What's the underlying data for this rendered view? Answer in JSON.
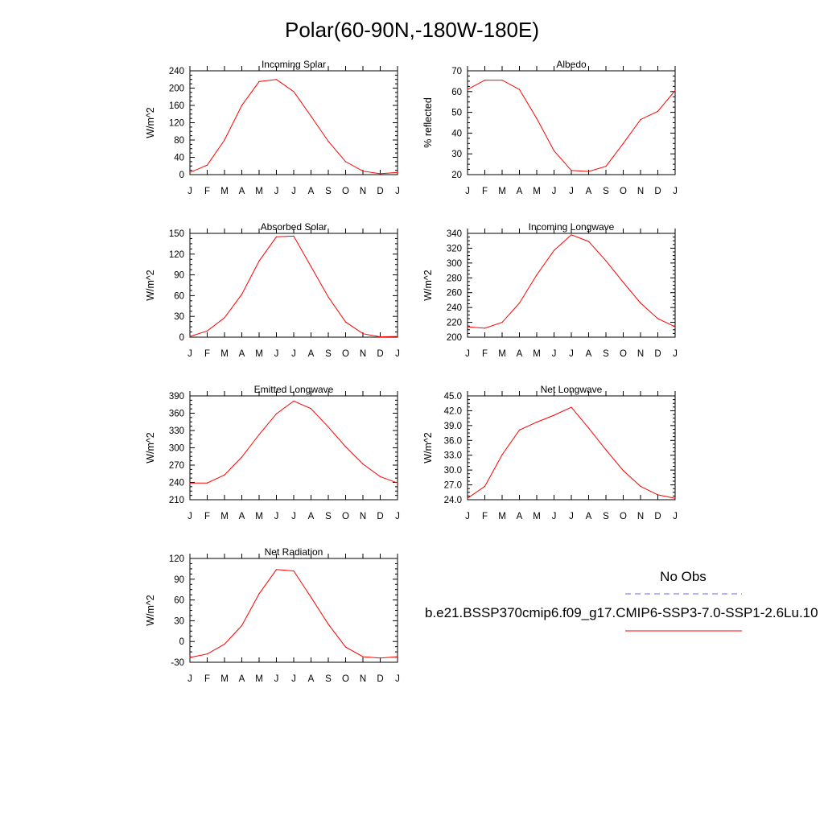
{
  "figure_title": "Polar(60-90N,-180W-180E)",
  "colors": {
    "model": "#ff0000",
    "obs": "#6666ff",
    "axis": "#000000"
  },
  "legend": {
    "obs_label": "No Obs",
    "model_label": "b.e21.BSSP370cmip6.f09_g17.CMIP6-SSP3-7.0-SSP1-2.6Lu.10"
  },
  "chart_data": [
    {
      "type": "line",
      "title": "Incoming Solar",
      "xlabel": "",
      "ylabel": "W/m^2",
      "x": [
        "J",
        "F",
        "M",
        "A",
        "M",
        "J",
        "J",
        "A",
        "S",
        "O",
        "N",
        "D",
        "J"
      ],
      "ylim": [
        0,
        240
      ],
      "yticks": [
        "0",
        "40",
        "80",
        "120",
        "160",
        "200",
        "240"
      ],
      "series": [
        {
          "values": [
            5,
            22,
            80,
            160,
            215,
            220,
            192,
            135,
            77,
            30,
            8,
            2,
            5
          ]
        }
      ]
    },
    {
      "type": "line",
      "title": "Albedo",
      "xlabel": "",
      "ylabel": "% reflected",
      "x": [
        "J",
        "F",
        "M",
        "A",
        "M",
        "J",
        "J",
        "A",
        "S",
        "O",
        "N",
        "D",
        "J"
      ],
      "ylim": [
        20,
        70
      ],
      "yticks": [
        "20",
        "30",
        "40",
        "50",
        "60",
        "70"
      ],
      "series": [
        {
          "values": [
            61,
            65.5,
            65.5,
            61,
            47,
            31.5,
            22,
            21.5,
            24,
            35,
            46.5,
            50.5,
            60.5
          ]
        }
      ]
    },
    {
      "type": "line",
      "title": "Absorbed Solar",
      "xlabel": "",
      "ylabel": "W/m^2",
      "x": [
        "J",
        "F",
        "M",
        "A",
        "M",
        "J",
        "J",
        "A",
        "S",
        "O",
        "N",
        "D",
        "J"
      ],
      "ylim": [
        0,
        150
      ],
      "yticks": [
        "0",
        "30",
        "60",
        "90",
        "120",
        "150"
      ],
      "series": [
        {
          "values": [
            1,
            9,
            28,
            62,
            110,
            145,
            146,
            102,
            58,
            22,
            5,
            0.5,
            1
          ]
        }
      ]
    },
    {
      "type": "line",
      "title": "Incoming Longwave",
      "xlabel": "",
      "ylabel": "W/m^2",
      "x": [
        "J",
        "F",
        "M",
        "A",
        "M",
        "J",
        "J",
        "A",
        "S",
        "O",
        "N",
        "D",
        "J"
      ],
      "ylim": [
        200,
        340
      ],
      "yticks": [
        "200",
        "220",
        "240",
        "260",
        "280",
        "300",
        "320",
        "340"
      ],
      "series": [
        {
          "values": [
            214,
            212,
            220,
            246,
            284,
            317,
            338,
            329,
            303,
            274,
            246,
            225,
            214
          ]
        }
      ]
    },
    {
      "type": "line",
      "title": "Emitted Longwave",
      "xlabel": "",
      "ylabel": "W/m^2",
      "x": [
        "J",
        "F",
        "M",
        "A",
        "M",
        "J",
        "J",
        "A",
        "S",
        "O",
        "N",
        "D",
        "J"
      ],
      "ylim": [
        210,
        390
      ],
      "yticks": [
        "210",
        "240",
        "270",
        "300",
        "330",
        "360",
        "390"
      ],
      "series": [
        {
          "values": [
            239,
            239,
            253,
            284,
            323,
            359,
            381,
            368,
            336,
            302,
            272,
            250,
            239
          ]
        }
      ]
    },
    {
      "type": "line",
      "title": "Net Longwave",
      "xlabel": "",
      "ylabel": "W/m^2",
      "x": [
        "J",
        "F",
        "M",
        "A",
        "M",
        "J",
        "J",
        "A",
        "S",
        "O",
        "N",
        "D",
        "J"
      ],
      "ylim": [
        24,
        45
      ],
      "yticks": [
        "24.0",
        "27.0",
        "30.0",
        "33.0",
        "36.0",
        "39.0",
        "42.0",
        "45.0"
      ],
      "series": [
        {
          "values": [
            24.3,
            26.7,
            33.1,
            38.1,
            39.7,
            41.1,
            42.7,
            38.5,
            34.1,
            29.9,
            26.7,
            25.0,
            24.3
          ]
        }
      ]
    },
    {
      "type": "line",
      "title": "Net Radiation",
      "xlabel": "",
      "ylabel": "W/m^2",
      "x": [
        "J",
        "F",
        "M",
        "A",
        "M",
        "J",
        "J",
        "A",
        "S",
        "O",
        "N",
        "D",
        "J"
      ],
      "ylim": [
        -30,
        120
      ],
      "yticks": [
        "-30",
        "0",
        "30",
        "60",
        "90",
        "120"
      ],
      "series": [
        {
          "values": [
            -23,
            -18,
            -4,
            23,
            69,
            104,
            102,
            64,
            25,
            -8,
            -22,
            -24,
            -22
          ]
        }
      ]
    }
  ]
}
